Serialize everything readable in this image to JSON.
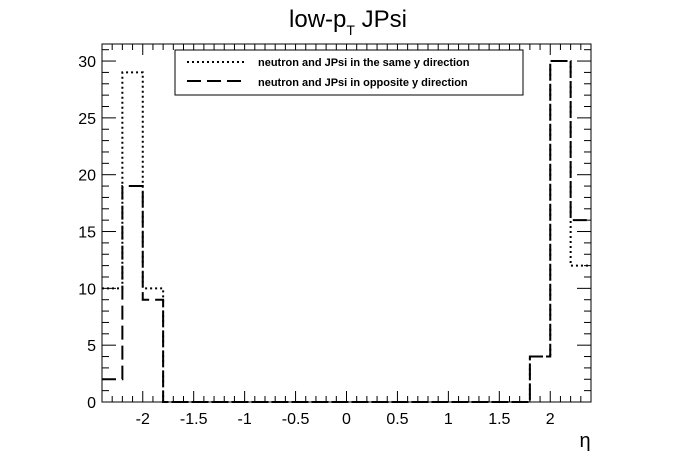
{
  "chart_data": {
    "type": "step-histogram",
    "title": {
      "main": "low-p",
      "sub": "T",
      "suffix": " JPsi"
    },
    "xlabel": "η",
    "ylabel": "",
    "xlim": [
      -2.4,
      2.4
    ],
    "ylim": [
      0,
      31.5
    ],
    "bin_width": 0.2,
    "x_ticks": [
      -2,
      -1.5,
      -1,
      -0.5,
      0,
      0.5,
      1,
      1.5,
      2
    ],
    "x_tick_labels": [
      "-2",
      "-1.5",
      "-1",
      "-0.5",
      "0",
      "0.5",
      "1",
      "1.5",
      "2"
    ],
    "y_ticks": [
      0,
      5,
      10,
      15,
      20,
      25,
      30
    ],
    "y_tick_labels": [
      "0",
      "5",
      "10",
      "15",
      "20",
      "25",
      "30"
    ],
    "grid": false,
    "legend_position": "top-center",
    "series": [
      {
        "name": "neutron and JPsi in the same y direction",
        "style": "dotted",
        "color": "#000000",
        "bins": [
          {
            "x0": -2.4,
            "x1": -2.2,
            "value": 10
          },
          {
            "x0": -2.2,
            "x1": -2.0,
            "value": 29
          },
          {
            "x0": -2.0,
            "x1": -1.8,
            "value": 10
          },
          {
            "x0": -1.8,
            "x1": 1.8,
            "value": 0
          },
          {
            "x0": 1.8,
            "x1": 2.0,
            "value": 4
          },
          {
            "x0": 2.0,
            "x1": 2.2,
            "value": 30
          },
          {
            "x0": 2.2,
            "x1": 2.4,
            "value": 12
          }
        ]
      },
      {
        "name": "neutron and JPsi in opposite y direction",
        "style": "dashed",
        "color": "#000000",
        "bins": [
          {
            "x0": -2.4,
            "x1": -2.2,
            "value": 2
          },
          {
            "x0": -2.2,
            "x1": -2.0,
            "value": 19
          },
          {
            "x0": -2.0,
            "x1": -1.8,
            "value": 9
          },
          {
            "x0": -1.8,
            "x1": 1.8,
            "value": 0
          },
          {
            "x0": 1.8,
            "x1": 2.0,
            "value": 4
          },
          {
            "x0": 2.0,
            "x1": 2.2,
            "value": 30
          },
          {
            "x0": 2.2,
            "x1": 2.4,
            "value": 16
          }
        ]
      }
    ]
  }
}
